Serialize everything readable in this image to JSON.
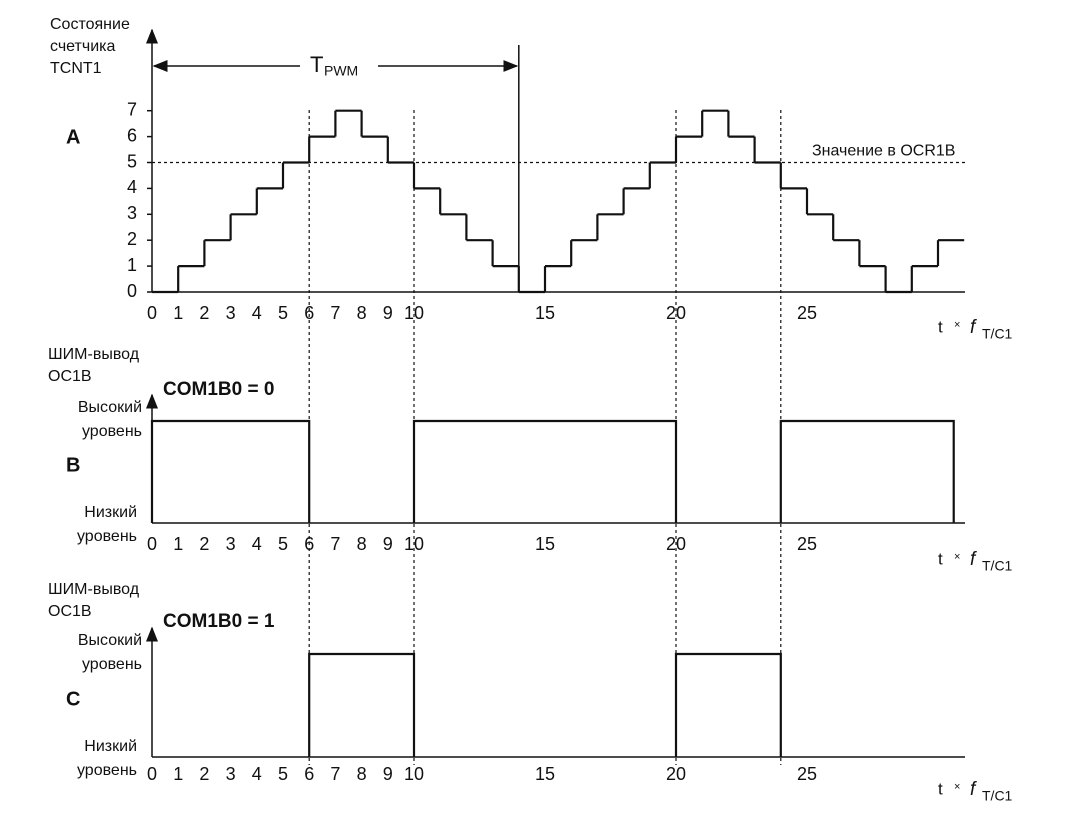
{
  "panel_a": {
    "letter": "A",
    "y_label": [
      "Состояние",
      "счетчика",
      "TCNT1"
    ],
    "period_label": "T",
    "period_sub": "PWM",
    "period_end": 14,
    "compare_label": "Значение в OCR1B",
    "compare_value": 5,
    "yticks": [
      0,
      1,
      2,
      3,
      4,
      5,
      6,
      7
    ],
    "counter": [
      0,
      1,
      2,
      3,
      4,
      5,
      6,
      7,
      6,
      5,
      4,
      3,
      2,
      1,
      0,
      1,
      2,
      3,
      4,
      5,
      6,
      7,
      6,
      5,
      4,
      3,
      2,
      1,
      0,
      1,
      2
    ]
  },
  "x_axis": {
    "ticks": [
      0,
      1,
      2,
      3,
      4,
      5,
      6,
      7,
      8,
      9,
      10,
      15,
      20,
      25
    ],
    "label_t": "t",
    "label_times": "×",
    "label_f": "f",
    "label_sub": "T/C1"
  },
  "panels": [
    {
      "letter": "B",
      "y_label": [
        "ШИМ-вывод",
        "OC1B"
      ],
      "mode": "COM1B0 = 0",
      "high_label": [
        "Высокий",
        "уровень"
      ],
      "low_label": [
        "Низкий",
        "уровень"
      ],
      "high_intervals": [
        [
          0,
          6
        ],
        [
          10,
          20
        ],
        [
          24,
          30.6
        ]
      ]
    },
    {
      "letter": "C",
      "y_label": [
        "ШИМ-вывод",
        "OC1B"
      ],
      "mode": "COM1B0 = 1",
      "high_label": [
        "Высокий",
        "уровень"
      ],
      "low_label": [
        "Низкий",
        "уровень"
      ],
      "high_intervals": [
        [
          6,
          10
        ],
        [
          20,
          24
        ]
      ]
    }
  ],
  "markers": [
    6,
    10,
    20,
    24
  ]
}
